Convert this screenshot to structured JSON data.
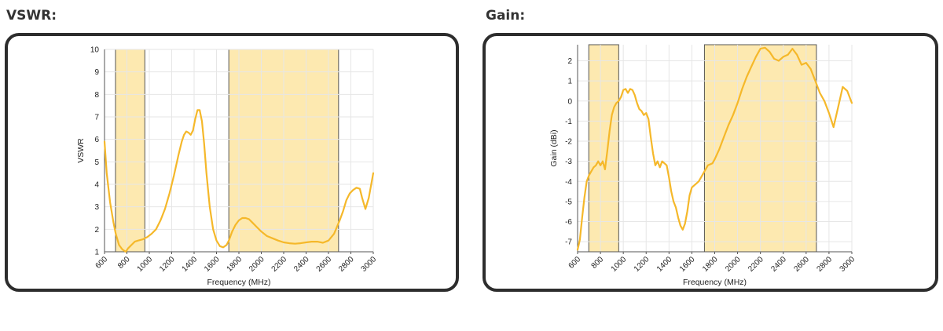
{
  "colors": {
    "line": "#f5b82a",
    "band_fill": "#fde9b0",
    "band_edge": "#555555",
    "grid": "#e6e6e6",
    "axis": "#555555",
    "panel_border": "#2d2d2d"
  },
  "chart_data": [
    {
      "type": "line",
      "title": "VSWR:",
      "xlabel": "Frequency (MHz)",
      "ylabel": "VSWR",
      "xlim": [
        600,
        3000
      ],
      "ylim": [
        1,
        10
      ],
      "x_ticks": [
        600,
        800,
        1000,
        1200,
        1400,
        1600,
        1800,
        2000,
        2200,
        2400,
        2600,
        2800,
        3000
      ],
      "y_ticks": [
        1,
        2,
        3,
        4,
        5,
        6,
        7,
        8,
        9,
        10
      ],
      "grid": true,
      "bands": [
        [
          698,
          960
        ],
        [
          1710,
          2690
        ]
      ],
      "series": [
        {
          "x": [
            600,
            620,
            650,
            680,
            700,
            730,
            760,
            790,
            810,
            840,
            870,
            900,
            940,
            980,
            1020,
            1060,
            1100,
            1140,
            1180,
            1220,
            1260,
            1290,
            1310,
            1330,
            1350,
            1370,
            1390,
            1410,
            1430,
            1450,
            1470,
            1490,
            1510,
            1540,
            1570,
            1600,
            1630,
            1660,
            1690,
            1710,
            1740,
            1770,
            1800,
            1830,
            1860,
            1890,
            1920,
            1960,
            2000,
            2050,
            2100,
            2150,
            2200,
            2250,
            2300,
            2350,
            2400,
            2450,
            2500,
            2550,
            2600,
            2650,
            2700,
            2730,
            2760,
            2790,
            2820,
            2850,
            2880,
            2900,
            2930,
            2960,
            3000
          ],
          "values": [
            5.9,
            4.5,
            3.2,
            2.3,
            1.8,
            1.3,
            1.1,
            1.0,
            1.15,
            1.3,
            1.45,
            1.5,
            1.55,
            1.65,
            1.8,
            2.0,
            2.4,
            2.9,
            3.6,
            4.4,
            5.3,
            5.9,
            6.2,
            6.35,
            6.3,
            6.2,
            6.4,
            6.9,
            7.3,
            7.3,
            6.8,
            5.8,
            4.5,
            3.0,
            2.0,
            1.5,
            1.25,
            1.2,
            1.3,
            1.5,
            1.9,
            2.2,
            2.4,
            2.5,
            2.5,
            2.45,
            2.3,
            2.1,
            1.9,
            1.7,
            1.6,
            1.5,
            1.42,
            1.38,
            1.36,
            1.38,
            1.42,
            1.45,
            1.45,
            1.4,
            1.5,
            1.8,
            2.4,
            2.8,
            3.3,
            3.6,
            3.75,
            3.85,
            3.8,
            3.4,
            2.9,
            3.4,
            4.5
          ]
        }
      ]
    },
    {
      "type": "line",
      "title": "Gain:",
      "xlabel": "Frequency (MHz)",
      "ylabel": "Gain (dBi)",
      "xlim": [
        600,
        3000
      ],
      "ylim": [
        -7.5,
        2.8
      ],
      "x_ticks": [
        600,
        800,
        1000,
        1200,
        1400,
        1600,
        1800,
        2000,
        2200,
        2400,
        2600,
        2800,
        3000
      ],
      "y_ticks": [
        -7,
        -6,
        -5,
        -4,
        -3,
        -2,
        -1,
        0,
        1,
        2
      ],
      "grid": true,
      "bands": [
        [
          698,
          960
        ],
        [
          1710,
          2690
        ]
      ],
      "series": [
        {
          "x": [
            600,
            620,
            640,
            660,
            680,
            700,
            720,
            740,
            760,
            780,
            800,
            820,
            840,
            860,
            880,
            900,
            920,
            940,
            960,
            980,
            1000,
            1020,
            1040,
            1060,
            1080,
            1100,
            1120,
            1140,
            1160,
            1180,
            1200,
            1220,
            1240,
            1260,
            1280,
            1300,
            1320,
            1340,
            1360,
            1380,
            1400,
            1420,
            1440,
            1460,
            1480,
            1500,
            1520,
            1540,
            1560,
            1580,
            1600,
            1620,
            1640,
            1660,
            1680,
            1700,
            1720,
            1740,
            1760,
            1780,
            1800,
            1840,
            1880,
            1920,
            1960,
            2000,
            2040,
            2080,
            2120,
            2160,
            2200,
            2240,
            2280,
            2320,
            2360,
            2400,
            2440,
            2480,
            2520,
            2560,
            2600,
            2640,
            2680,
            2720,
            2760,
            2800,
            2840,
            2880,
            2920,
            2960,
            3000
          ],
          "values": [
            -7.4,
            -6.9,
            -5.8,
            -4.8,
            -4.0,
            -3.7,
            -3.5,
            -3.3,
            -3.2,
            -3.0,
            -3.2,
            -3.0,
            -3.4,
            -2.5,
            -1.5,
            -0.7,
            -0.3,
            -0.1,
            0.0,
            0.2,
            0.55,
            0.6,
            0.4,
            0.6,
            0.55,
            0.3,
            -0.1,
            -0.4,
            -0.5,
            -0.7,
            -0.6,
            -0.9,
            -1.8,
            -2.6,
            -3.2,
            -3.0,
            -3.3,
            -3.0,
            -3.1,
            -3.2,
            -3.8,
            -4.5,
            -5.0,
            -5.3,
            -5.8,
            -6.2,
            -6.4,
            -6.1,
            -5.5,
            -4.7,
            -4.3,
            -4.2,
            -4.1,
            -4.0,
            -3.8,
            -3.6,
            -3.4,
            -3.2,
            -3.15,
            -3.1,
            -2.9,
            -2.4,
            -1.8,
            -1.2,
            -0.7,
            -0.1,
            0.6,
            1.2,
            1.7,
            2.2,
            2.6,
            2.65,
            2.45,
            2.1,
            2.0,
            2.2,
            2.3,
            2.6,
            2.3,
            1.8,
            1.9,
            1.6,
            1.0,
            0.4,
            0.0,
            -0.6,
            -1.3,
            -0.3,
            0.7,
            0.5,
            -0.1
          ]
        }
      ]
    }
  ]
}
